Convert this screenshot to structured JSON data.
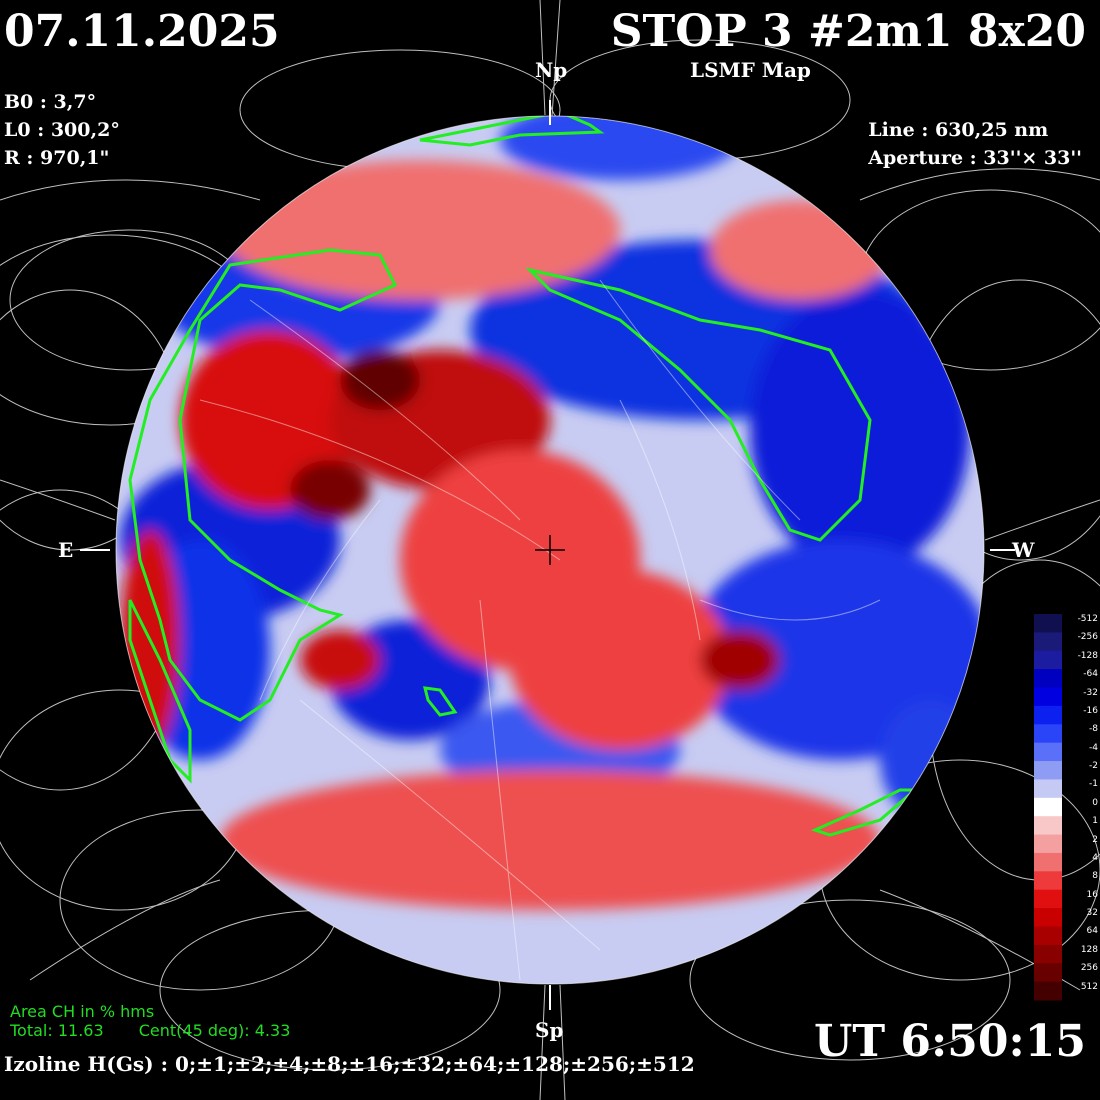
{
  "header": {
    "date": "07.11.2025",
    "title": "STOP 3 #2m1 8x20",
    "subtitle": "LSMF  Map"
  },
  "params": {
    "b0": "B0 : 3,7°",
    "l0": "L0 : 300,2°",
    "r": "R  : 970,1\""
  },
  "instrument": {
    "line": "Line :  630,25 nm",
    "aperture": "Aperture : 33''× 33''"
  },
  "markers": {
    "north": "Np",
    "south": "Sp",
    "east": "E",
    "west": "W"
  },
  "coronal_holes": {
    "title": "Area CH in % hms",
    "total": "Total: 11.63",
    "central": "Cent(45 deg): 4.33"
  },
  "time": "UT 6:50:15",
  "izoline": "Izoline H(Gs) : 0;±1;±2;±4;±8;±16;±32;±64;±128;±256;±512",
  "colorbar": {
    "ticks": [
      "-512",
      "-256",
      "-128",
      "-64",
      "-32",
      "-16",
      "-8",
      "-4",
      "-2",
      "-1",
      "0",
      "1",
      "2",
      "4",
      "8",
      "16",
      "32",
      "64",
      "128",
      "256",
      "512"
    ],
    "colors": [
      "#101050",
      "#1a1a78",
      "#1c1ca0",
      "#0000c0",
      "#0000e0",
      "#0c20f0",
      "#2a44f8",
      "#5a70f8",
      "#8e9cf4",
      "#c4caf4",
      "#ffffff",
      "#f8c8c8",
      "#f4a0a0",
      "#f07070",
      "#ee3a3a",
      "#e01010",
      "#c80000",
      "#a80000",
      "#880000",
      "#680000",
      "#440000"
    ]
  }
}
